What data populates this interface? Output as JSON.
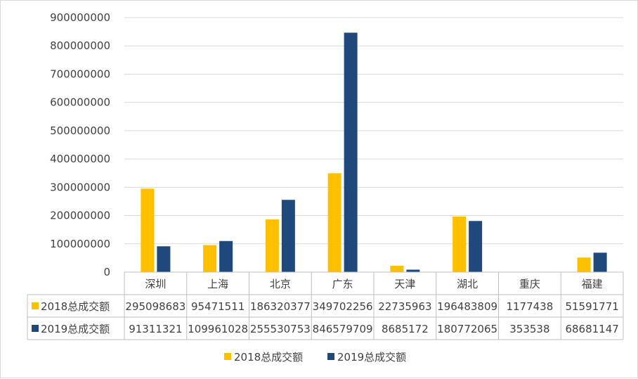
{
  "chart_data": {
    "type": "bar",
    "title": "",
    "xlabel": "",
    "ylabel": "",
    "ylim": [
      0,
      900000000
    ],
    "yticks": [
      0,
      100000000,
      200000000,
      300000000,
      400000000,
      500000000,
      600000000,
      700000000,
      800000000,
      900000000
    ],
    "grid": true,
    "legend": "bottom",
    "data_table": true,
    "categories": [
      "深圳",
      "上海",
      "北京",
      "广东",
      "天津",
      "湖北",
      "重庆",
      "福建"
    ],
    "series": [
      {
        "name": "2018总成交额",
        "color": "#FFC000",
        "values": [
          295098683,
          95471511,
          186320377,
          349702256,
          22735963,
          196483809,
          1177438,
          51591771
        ]
      },
      {
        "name": "2019总成交额",
        "color": "#1F497D",
        "values": [
          91311321,
          109961028,
          255530753,
          846579709,
          8685172,
          180772065,
          353538,
          68681147
        ]
      }
    ]
  }
}
